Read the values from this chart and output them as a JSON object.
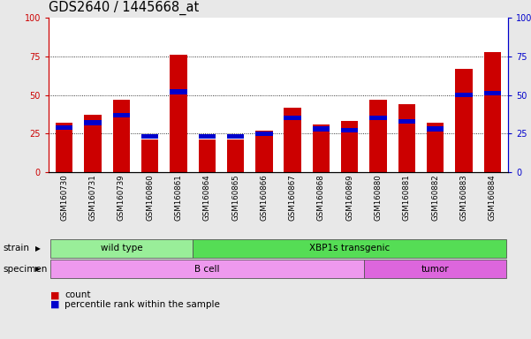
{
  "title": "GDS2640 / 1445668_at",
  "samples": [
    "GSM160730",
    "GSM160731",
    "GSM160739",
    "GSM160860",
    "GSM160861",
    "GSM160864",
    "GSM160865",
    "GSM160866",
    "GSM160867",
    "GSM160868",
    "GSM160869",
    "GSM160880",
    "GSM160881",
    "GSM160882",
    "GSM160883",
    "GSM160884"
  ],
  "count_values": [
    32,
    37,
    47,
    21,
    76,
    21,
    21,
    27,
    42,
    31,
    33,
    47,
    44,
    32,
    67,
    78
  ],
  "percentile_values": [
    29,
    32,
    37,
    23,
    52,
    23,
    23,
    25,
    35,
    28,
    27,
    35,
    33,
    28,
    50,
    51
  ],
  "bar_color": "#cc0000",
  "percentile_color": "#0000cc",
  "ylim": [
    0,
    100
  ],
  "yticks": [
    0,
    25,
    50,
    75,
    100
  ],
  "left_axis_color": "#cc0000",
  "right_axis_color": "#0000cc",
  "strain_labels": [
    {
      "label": "wild type",
      "start": 0,
      "end": 5,
      "color": "#99ee99"
    },
    {
      "label": "XBP1s transgenic",
      "start": 5,
      "end": 16,
      "color": "#55dd55"
    }
  ],
  "specimen_labels": [
    {
      "label": "B cell",
      "start": 0,
      "end": 11,
      "color": "#ee99ee"
    },
    {
      "label": "tumor",
      "start": 11,
      "end": 16,
      "color": "#dd66dd"
    }
  ],
  "strain_row_label": "strain",
  "specimen_row_label": "specimen",
  "legend_count_label": "count",
  "legend_percentile_label": "percentile rank within the sample",
  "background_color": "#e8e8e8",
  "plot_bg_color": "#ffffff",
  "tick_fontsize": 7,
  "title_fontsize": 10.5
}
